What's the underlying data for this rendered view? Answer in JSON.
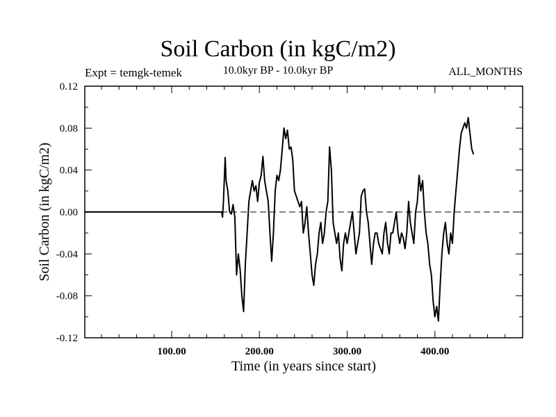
{
  "header": {
    "title": "Soil Carbon (in kgC/m2)",
    "expt": "Expt = temgk-temek",
    "period": "10.0kyr BP - 10.0kyr BP",
    "months": "ALL_MONTHS"
  },
  "chart_data": {
    "type": "line",
    "title": "Soil Carbon (in kgC/m2)",
    "xlabel": "Time (in years since start)",
    "ylabel": "Soil Carbon (in kgC/m2)",
    "xlim": [
      1,
      500
    ],
    "ylim": [
      -0.12,
      0.12
    ],
    "x_ticks": [
      100,
      200,
      300,
      400
    ],
    "x_tick_labels": [
      "100.00",
      "200.00",
      "300.00",
      "400.00"
    ],
    "y_ticks": [
      -0.12,
      -0.08,
      -0.04,
      0.0,
      0.04,
      0.08,
      0.12
    ],
    "y_tick_labels": [
      "-0.12",
      "-0.08",
      "-0.04",
      "0.00",
      "0.04",
      "0.08",
      "0.12"
    ],
    "zero_line": {
      "value": 0.0,
      "style": "dashed"
    },
    "series": [
      {
        "name": "temgk-temek",
        "points": [
          [
            1,
            0.0
          ],
          [
            157,
            0.0
          ],
          [
            158,
            -0.005
          ],
          [
            159,
            0.01
          ],
          [
            161,
            0.052
          ],
          [
            162,
            0.03
          ],
          [
            164,
            0.02
          ],
          [
            166,
            0.0
          ],
          [
            168,
            -0.002
          ],
          [
            170,
            0.007
          ],
          [
            172,
            -0.005
          ],
          [
            174,
            -0.06
          ],
          [
            176,
            -0.04
          ],
          [
            178,
            -0.055
          ],
          [
            180,
            -0.08
          ],
          [
            182,
            -0.095
          ],
          [
            184,
            -0.05
          ],
          [
            186,
            -0.02
          ],
          [
            188,
            0.01
          ],
          [
            190,
            0.02
          ],
          [
            192,
            0.03
          ],
          [
            194,
            0.02
          ],
          [
            196,
            0.025
          ],
          [
            198,
            0.01
          ],
          [
            200,
            0.028
          ],
          [
            202,
            0.035
          ],
          [
            204,
            0.053
          ],
          [
            206,
            0.03
          ],
          [
            208,
            0.02
          ],
          [
            210,
            0.01
          ],
          [
            212,
            -0.02
          ],
          [
            214,
            -0.047
          ],
          [
            216,
            -0.02
          ],
          [
            218,
            0.02
          ],
          [
            220,
            0.035
          ],
          [
            222,
            0.03
          ],
          [
            224,
            0.04
          ],
          [
            226,
            0.06
          ],
          [
            228,
            0.08
          ],
          [
            230,
            0.07
          ],
          [
            232,
            0.078
          ],
          [
            234,
            0.06
          ],
          [
            236,
            0.062
          ],
          [
            238,
            0.05
          ],
          [
            240,
            0.02
          ],
          [
            242,
            0.015
          ],
          [
            244,
            0.01
          ],
          [
            246,
            0.005
          ],
          [
            248,
            0.01
          ],
          [
            250,
            -0.02
          ],
          [
            252,
            -0.01
          ],
          [
            254,
            0.005
          ],
          [
            256,
            -0.02
          ],
          [
            258,
            -0.04
          ],
          [
            260,
            -0.06
          ],
          [
            262,
            -0.07
          ],
          [
            264,
            -0.05
          ],
          [
            266,
            -0.04
          ],
          [
            268,
            -0.02
          ],
          [
            270,
            -0.01
          ],
          [
            272,
            -0.03
          ],
          [
            274,
            -0.02
          ],
          [
            276,
            0.0
          ],
          [
            278,
            0.01
          ],
          [
            280,
            0.062
          ],
          [
            282,
            0.04
          ],
          [
            284,
            -0.01
          ],
          [
            286,
            -0.02
          ],
          [
            288,
            -0.03
          ],
          [
            290,
            -0.02
          ],
          [
            292,
            -0.045
          ],
          [
            294,
            -0.056
          ],
          [
            296,
            -0.03
          ],
          [
            298,
            -0.02
          ],
          [
            300,
            -0.03
          ],
          [
            302,
            -0.02
          ],
          [
            304,
            -0.01
          ],
          [
            306,
            0.0
          ],
          [
            308,
            -0.02
          ],
          [
            310,
            -0.04
          ],
          [
            312,
            -0.03
          ],
          [
            314,
            -0.02
          ],
          [
            316,
            0.015
          ],
          [
            318,
            0.02
          ],
          [
            320,
            0.022
          ],
          [
            322,
            0.0
          ],
          [
            324,
            -0.01
          ],
          [
            326,
            -0.03
          ],
          [
            328,
            -0.05
          ],
          [
            330,
            -0.03
          ],
          [
            332,
            -0.02
          ],
          [
            334,
            -0.02
          ],
          [
            336,
            -0.03
          ],
          [
            338,
            -0.035
          ],
          [
            340,
            -0.04
          ],
          [
            342,
            -0.02
          ],
          [
            344,
            -0.01
          ],
          [
            346,
            -0.03
          ],
          [
            348,
            -0.04
          ],
          [
            350,
            -0.02
          ],
          [
            352,
            -0.02
          ],
          [
            354,
            -0.01
          ],
          [
            356,
            0.0
          ],
          [
            358,
            -0.02
          ],
          [
            360,
            -0.03
          ],
          [
            362,
            -0.02
          ],
          [
            364,
            -0.025
          ],
          [
            366,
            -0.035
          ],
          [
            368,
            -0.02
          ],
          [
            370,
            0.01
          ],
          [
            372,
            -0.01
          ],
          [
            374,
            -0.02
          ],
          [
            376,
            -0.03
          ],
          [
            378,
            0.0
          ],
          [
            380,
            0.01
          ],
          [
            382,
            0.035
          ],
          [
            384,
            0.02
          ],
          [
            386,
            0.03
          ],
          [
            388,
            0.0
          ],
          [
            390,
            -0.02
          ],
          [
            392,
            -0.03
          ],
          [
            394,
            -0.05
          ],
          [
            396,
            -0.06
          ],
          [
            398,
            -0.085
          ],
          [
            400,
            -0.1
          ],
          [
            402,
            -0.09
          ],
          [
            404,
            -0.104
          ],
          [
            406,
            -0.07
          ],
          [
            408,
            -0.04
          ],
          [
            410,
            -0.02
          ],
          [
            412,
            -0.01
          ],
          [
            414,
            -0.03
          ],
          [
            416,
            -0.04
          ],
          [
            418,
            -0.02
          ],
          [
            420,
            -0.03
          ],
          [
            422,
            0.0
          ],
          [
            424,
            0.02
          ],
          [
            426,
            0.04
          ],
          [
            428,
            0.06
          ],
          [
            430,
            0.075
          ],
          [
            432,
            0.08
          ],
          [
            434,
            0.085
          ],
          [
            436,
            0.08
          ],
          [
            438,
            0.09
          ],
          [
            440,
            0.075
          ],
          [
            442,
            0.06
          ],
          [
            444,
            0.055
          ]
        ]
      }
    ]
  }
}
